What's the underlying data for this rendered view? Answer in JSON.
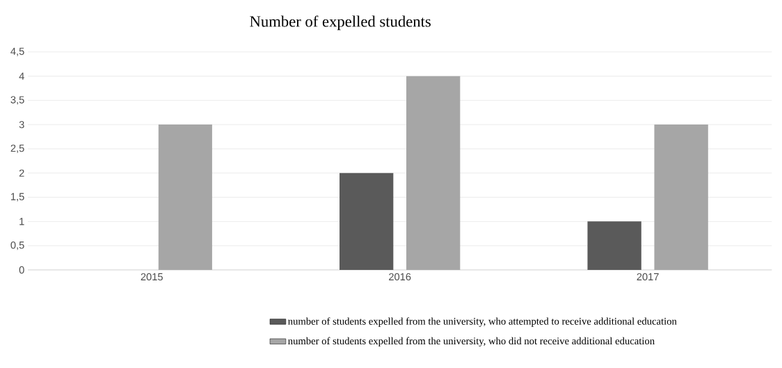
{
  "chart_data": {
    "type": "bar",
    "title": "Number of expelled students",
    "categories": [
      "2015",
      "2016",
      "2017"
    ],
    "series": [
      {
        "name": "number of students expelled from the university, who attempted to receive additional education",
        "color": "#5a5a5a",
        "values": [
          0,
          2,
          1
        ]
      },
      {
        "name": "number of students expelled from the university, who did not receive additional education",
        "color": "#a6a6a6",
        "values": [
          3,
          4,
          3
        ]
      }
    ],
    "ylim": [
      0,
      4.5
    ],
    "yticks": [
      0,
      {
        "value": 0.5,
        "label": "0,5"
      },
      1,
      {
        "value": 1.5,
        "label": "1,5"
      },
      2,
      {
        "value": 2.5,
        "label": "2,5"
      },
      3,
      {
        "value": 3.5,
        "label": "3,5"
      },
      4,
      {
        "value": 4.5,
        "label": "4,5"
      }
    ],
    "grid": "y",
    "legend": "bottom"
  }
}
